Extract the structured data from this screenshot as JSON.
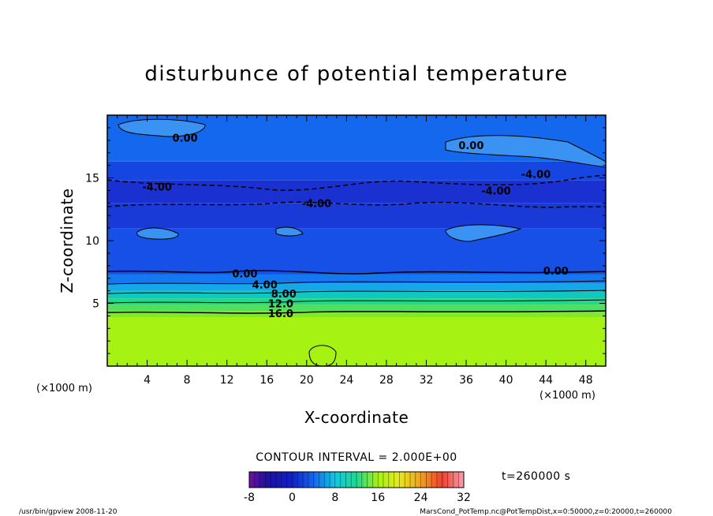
{
  "chart_data": {
    "type": "heatmap",
    "title": "disturbunce of potential temperature",
    "xlabel": "X-coordinate",
    "ylabel": "Z-coordinate",
    "x_unit": "(×1000 m)",
    "x_unit_right": "(×1000 m)",
    "xlim": [
      0,
      50
    ],
    "ylim": [
      0,
      20
    ],
    "x_ticks": [
      4,
      8,
      12,
      16,
      20,
      24,
      28,
      32,
      36,
      40,
      44,
      48
    ],
    "y_ticks": [
      5,
      10,
      15
    ],
    "contour_labels": [
      {
        "text": "0.00",
        "x": 7.8,
        "z": 18.2
      },
      {
        "text": "0.00",
        "x": 36.5,
        "z": 17.6
      },
      {
        "text": "-4.00",
        "x": 43,
        "z": 15.3
      },
      {
        "text": "-4.00",
        "x": 5,
        "z": 14.3
      },
      {
        "text": "-4.00",
        "x": 39,
        "z": 14.0
      },
      {
        "text": "-4.00",
        "x": 21,
        "z": 13.0
      },
      {
        "text": "0.00",
        "x": 13.8,
        "z": 7.4
      },
      {
        "text": "0.00",
        "x": 45,
        "z": 7.6
      },
      {
        "text": "4.00",
        "x": 15.8,
        "z": 6.5
      },
      {
        "text": "8.00",
        "x": 17.7,
        "z": 5.8
      },
      {
        "text": "12.0",
        "x": 17.4,
        "z": 5.0
      },
      {
        "text": "16.0",
        "x": 17.4,
        "z": 4.2
      }
    ],
    "bands": [
      {
        "z0": 0,
        "z1": 3.9,
        "value": 20,
        "color": "#a6f212"
      },
      {
        "z0": 3.9,
        "z1": 4.4,
        "value": 18,
        "color": "#7fe830"
      },
      {
        "z0": 4.4,
        "z1": 4.9,
        "value": 14,
        "color": "#4ee060"
      },
      {
        "z0": 4.9,
        "z1": 5.4,
        "value": 10,
        "color": "#22d88a"
      },
      {
        "z0": 5.4,
        "z1": 6.0,
        "value": 7,
        "color": "#10c8c0"
      },
      {
        "z0": 6.0,
        "z1": 6.6,
        "value": 4,
        "color": "#14a8e8"
      },
      {
        "z0": 6.6,
        "z1": 7.3,
        "value": 1,
        "color": "#1478f0"
      },
      {
        "z0": 7.3,
        "z1": 11.0,
        "value": -2,
        "color": "#1650e6"
      },
      {
        "z0": 11.0,
        "z1": 13.0,
        "value": -4,
        "color": "#1a3ad8"
      },
      {
        "z0": 13.0,
        "z1": 14.8,
        "value": -5,
        "color": "#1a30d0"
      },
      {
        "z0": 14.8,
        "z1": 16.3,
        "value": -3,
        "color": "#1646e2"
      },
      {
        "z0": 16.3,
        "z1": 20.0,
        "value": -1,
        "color": "#1468ee"
      }
    ],
    "colorbar": {
      "label": "CONTOUR INTERVAL = 2.000E+00",
      "ticks": [
        "-8",
        "0",
        "8",
        "16",
        "24",
        "32"
      ],
      "min": -8,
      "max": 32
    }
  },
  "time_label": "t=260000 s",
  "footer": {
    "left": "/usr/bin/gpview   2008-11-20",
    "right": "MarsCond_PotTemp.nc@PotTempDist,x=0:50000,z=0:20000,t=260000"
  },
  "colors": {
    "background": "#ffffff",
    "axes": "#000000"
  }
}
